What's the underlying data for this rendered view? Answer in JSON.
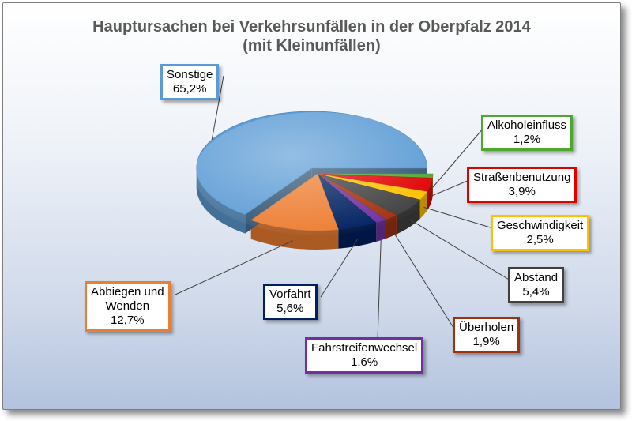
{
  "chart_data": {
    "type": "pie",
    "title": "Hauptursachen bei Verkehrsunfällen in der Oberpfalz 2014",
    "subtitle": "(mit Kleinunfällen)",
    "style": "3d-exploded",
    "slices": [
      {
        "label": "Alkoholeinfluss",
        "value": 1.2,
        "value_label": "1,2%",
        "color": "#4ea72e"
      },
      {
        "label": "Straßenbenutzung",
        "value": 3.9,
        "value_label": "3,9%",
        "color": "#e00000"
      },
      {
        "label": "Geschwindigkeit",
        "value": 2.5,
        "value_label": "2,5%",
        "color": "#ffc000"
      },
      {
        "label": "Abstand",
        "value": 5.4,
        "value_label": "5,4%",
        "color": "#404040"
      },
      {
        "label": "Überholen",
        "value": 1.9,
        "value_label": "1,9%",
        "color": "#a0300e"
      },
      {
        "label": "Fahrstreifenwechsel",
        "value": 1.6,
        "value_label": "1,6%",
        "color": "#7030a0"
      },
      {
        "label": "Vorfahrt",
        "value": 5.6,
        "value_label": "5,6%",
        "color": "#002060"
      },
      {
        "label": "Abbiegen und Wenden",
        "value": 12.7,
        "value_label": "12,7%",
        "color": "#ed7d31"
      },
      {
        "label": "Sonstige",
        "value": 65.2,
        "value_label": "65,2%",
        "color": "#5b9bd5"
      }
    ]
  }
}
